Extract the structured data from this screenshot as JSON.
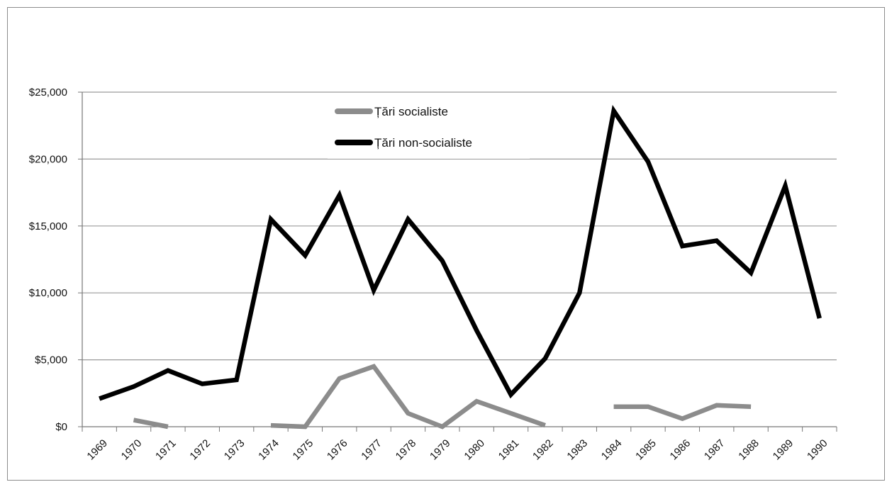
{
  "chart_data": {
    "type": "line",
    "title": "",
    "xlabel": "",
    "ylabel": "",
    "categories": [
      "1969",
      "1970",
      "1971",
      "1972",
      "1973",
      "1974",
      "1975",
      "1976",
      "1977",
      "1978",
      "1979",
      "1980",
      "1981",
      "1982",
      "1983",
      "1984",
      "1985",
      "1986",
      "1987",
      "1988",
      "1989",
      "1990"
    ],
    "y_tick_labels": [
      "$0",
      "$5,000",
      "$10,000",
      "$15,000",
      "$20,000",
      "$25,000"
    ],
    "y_ticks": [
      0,
      5000,
      10000,
      15000,
      20000,
      25000
    ],
    "ylim": [
      0,
      25000
    ],
    "grid": "horizontal",
    "legend_position": "top-center",
    "series": [
      {
        "name": "Țări socialiste",
        "color": "#8c8c8c",
        "values": [
          null,
          500,
          0,
          null,
          null,
          100,
          0,
          3600,
          4500,
          1000,
          0,
          1900,
          1000,
          100,
          null,
          1500,
          1500,
          600,
          1600,
          1500,
          null,
          null
        ]
      },
      {
        "name": "Țări non-socialiste",
        "color": "#000000",
        "values": [
          2100,
          3000,
          4200,
          3200,
          3500,
          15500,
          12800,
          17300,
          10200,
          15500,
          12400,
          7200,
          2400,
          5100,
          10000,
          23600,
          19800,
          13500,
          13900,
          11500,
          18000,
          8100
        ]
      }
    ]
  }
}
